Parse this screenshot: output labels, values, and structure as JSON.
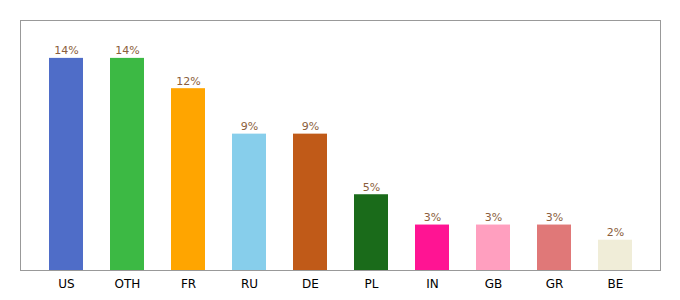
{
  "chart_data": {
    "type": "bar",
    "categories": [
      "US",
      "OTH",
      "FR",
      "RU",
      "DE",
      "PL",
      "IN",
      "GB",
      "GR",
      "BE"
    ],
    "values": [
      14,
      14,
      12,
      9,
      9,
      5,
      3,
      3,
      3,
      2
    ],
    "value_labels": [
      "14%",
      "14%",
      "12%",
      "9%",
      "9%",
      "5%",
      "3%",
      "3%",
      "3%",
      "2%"
    ],
    "colors": [
      "#4F6DC8",
      "#3CB944",
      "#FFA500",
      "#87CEEB",
      "#C05A18",
      "#1A6B1A",
      "#FF1493",
      "#FF9FBF",
      "#E07878",
      "#F0EDD8"
    ],
    "ylim": [
      0,
      16.5
    ],
    "data_labels": true,
    "tick_labels": "x",
    "grid": false
  }
}
